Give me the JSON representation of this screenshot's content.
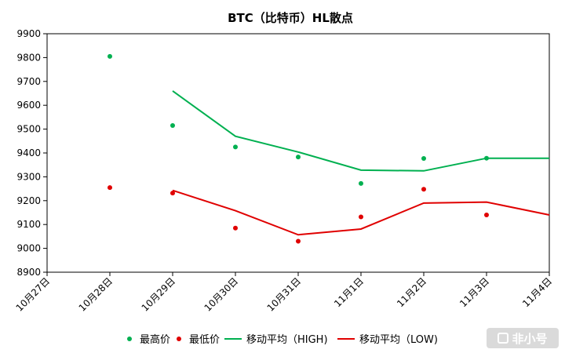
{
  "chart_data": {
    "type": "scatter",
    "title": "BTC（比特币）HL散点",
    "xlabel": "",
    "ylabel": "",
    "categories": [
      "10月27日",
      "10月28日",
      "10月29日",
      "10月30日",
      "10月31日",
      "11月1日",
      "11月2日",
      "11月3日",
      "11月4日"
    ],
    "ylim": [
      8900,
      9900
    ],
    "yticks": [
      8900,
      9000,
      9100,
      9200,
      9300,
      9400,
      9500,
      9600,
      9700,
      9800,
      9900
    ],
    "grid": false,
    "legend_position": "bottom",
    "series": [
      {
        "name": "最高价",
        "kind": "scatter",
        "color": "#00b050",
        "values": [
          null,
          9805,
          9515,
          9425,
          9383,
          9272,
          9377,
          9378,
          null
        ]
      },
      {
        "name": "最低价",
        "kind": "scatter",
        "color": "#e00000",
        "values": [
          null,
          9255,
          9232,
          9085,
          9030,
          9132,
          9248,
          9140,
          null
        ]
      },
      {
        "name": "移动平均（HIGH)",
        "kind": "line",
        "color": "#00b050",
        "values": [
          null,
          null,
          9660,
          9470,
          9404,
          9328,
          9325,
          9378,
          9378
        ]
      },
      {
        "name": "移动平均（LOW)",
        "kind": "line",
        "color": "#e00000",
        "values": [
          null,
          null,
          9243,
          9158,
          9057,
          9081,
          9190,
          9194,
          9140
        ]
      }
    ]
  },
  "watermark": {
    "text": "非小号"
  }
}
